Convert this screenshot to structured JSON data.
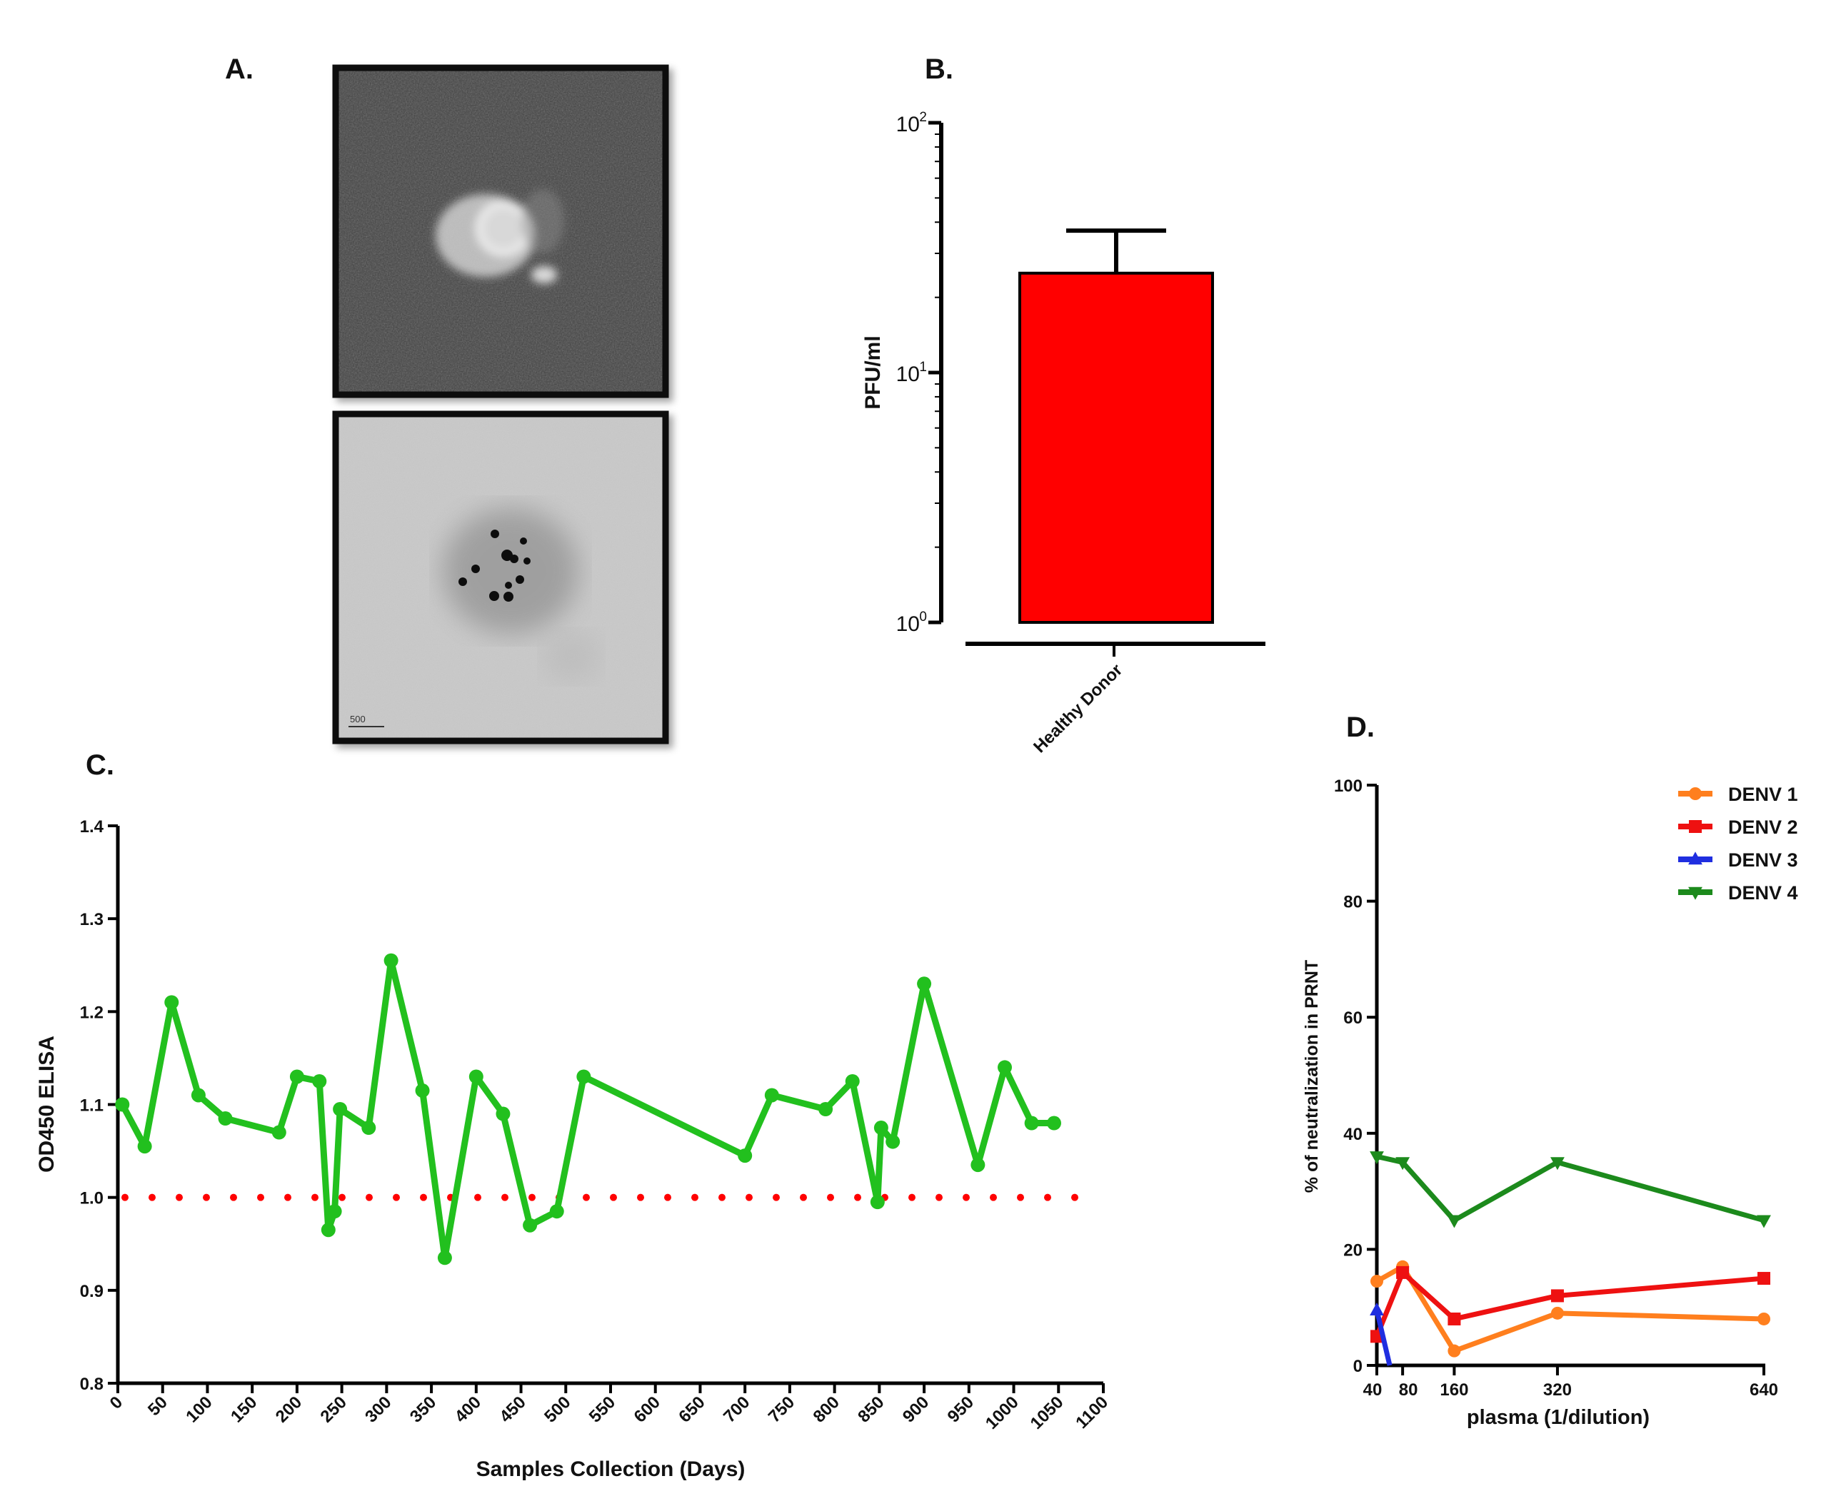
{
  "panel_labels": {
    "a": "A.",
    "b": "B.",
    "c": "C.",
    "d": "D."
  },
  "micrograph": {
    "scale_bar_label": "500"
  },
  "chart_data": [
    {
      "id": "B",
      "type": "bar",
      "yscale": "log",
      "categories": [
        "Healthy Donor"
      ],
      "values": [
        25
      ],
      "error_upper": [
        37
      ],
      "bar_color": "#ff0000",
      "ylim": [
        1,
        100
      ],
      "yticks": [
        {
          "value": 1,
          "base": "10",
          "exp": "0"
        },
        {
          "value": 10,
          "base": "10",
          "exp": "1"
        },
        {
          "value": 100,
          "base": "10",
          "exp": "2"
        }
      ],
      "ylabel": "PFU/ml",
      "xlabel": ""
    },
    {
      "id": "C",
      "type": "line",
      "xlabel": "Samples Collection (Days)",
      "ylabel": "OD450 ELISA",
      "xlim": [
        0,
        1100
      ],
      "ylim": [
        0.8,
        1.4
      ],
      "xticks": [
        0,
        50,
        100,
        150,
        200,
        250,
        300,
        350,
        400,
        450,
        500,
        550,
        600,
        650,
        700,
        750,
        800,
        850,
        900,
        950,
        1000,
        1050,
        1100
      ],
      "yticks": [
        "0.8",
        "0.9",
        "1.0",
        "1.1",
        "1.2",
        "1.3",
        "1.4"
      ],
      "series": [
        {
          "name": "OD450",
          "color": "#22c01e",
          "x": [
            5,
            30,
            60,
            90,
            120,
            180,
            200,
            225,
            235,
            242,
            248,
            280,
            305,
            340,
            365,
            400,
            430,
            460,
            490,
            520,
            700,
            730,
            790,
            820,
            848,
            852,
            865,
            900,
            960,
            990,
            1020,
            1045
          ],
          "y": [
            1.1,
            1.055,
            1.21,
            1.11,
            1.085,
            1.07,
            1.13,
            1.125,
            0.965,
            0.985,
            1.095,
            1.075,
            1.255,
            1.115,
            0.935,
            1.13,
            1.09,
            0.97,
            0.985,
            1.13,
            1.045,
            1.11,
            1.095,
            1.125,
            0.995,
            1.075,
            1.06,
            1.23,
            1.035,
            1.14,
            1.08,
            1.08
          ]
        }
      ],
      "threshold": {
        "value": 1.0,
        "color": "#ff0000",
        "style": "dotted"
      }
    },
    {
      "id": "D",
      "type": "line",
      "xlabel": "plasma (1/dilution)",
      "ylabel": "% of neutralization in PRNT",
      "xlim": [
        40,
        640
      ],
      "ylim": [
        0,
        100
      ],
      "xticks": [
        40,
        80,
        160,
        320,
        640
      ],
      "yticks": [
        0,
        20,
        40,
        60,
        80,
        100
      ],
      "series": [
        {
          "name": "DENV 1",
          "color": "#ff7f1e",
          "marker": "circle",
          "x": [
            40,
            80,
            160,
            320,
            640
          ],
          "y": [
            14.5,
            17,
            2.5,
            9,
            8
          ]
        },
        {
          "name": "DENV 2",
          "color": "#ee1111",
          "marker": "square",
          "x": [
            40,
            80,
            160,
            320,
            640
          ],
          "y": [
            5,
            16,
            8,
            12,
            15
          ]
        },
        {
          "name": "DENV 3",
          "color": "#1f2ee0",
          "marker": "triangle-up",
          "x": [
            40,
            60
          ],
          "y": [
            9.5,
            0
          ]
        },
        {
          "name": "DENV 4",
          "color": "#1c8a1c",
          "marker": "triangle-down",
          "x": [
            40,
            80,
            160,
            320,
            640
          ],
          "y": [
            36,
            35,
            25,
            35,
            25
          ]
        }
      ]
    }
  ]
}
